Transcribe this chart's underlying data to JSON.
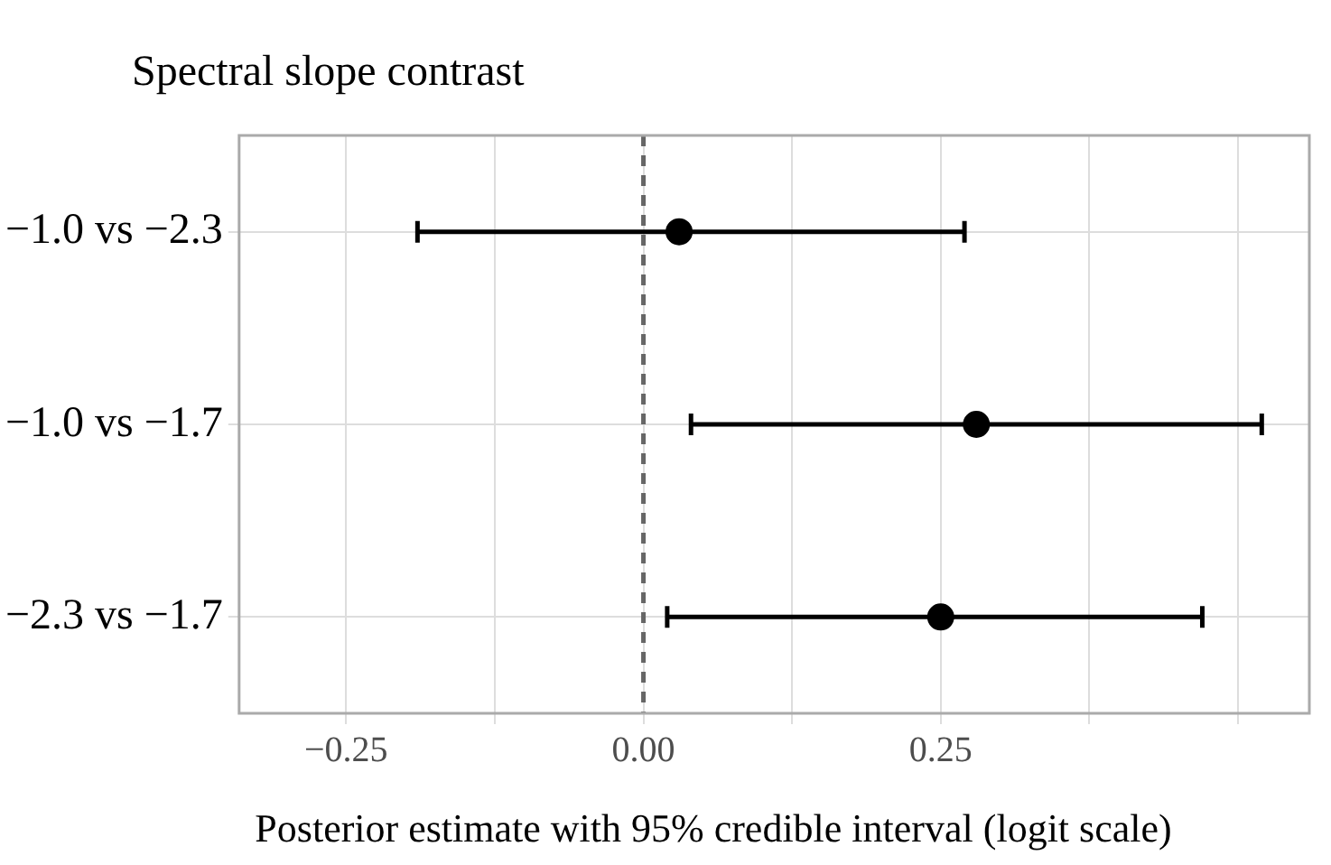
{
  "chart_data": {
    "type": "scatter",
    "orientation": "horizontal",
    "title": "Spectral slope contrast",
    "xlabel": "Posterior estimate with 95% credible interval (logit scale)",
    "categories": [
      "−1.0 vs −2.3",
      "−1.0 vs −1.7",
      "−2.3 vs −1.7"
    ],
    "values": [
      0.03,
      0.28,
      0.25
    ],
    "errors": [
      [
        -0.19,
        0.27
      ],
      [
        0.04,
        0.52
      ],
      [
        0.02,
        0.47
      ]
    ],
    "color": "#000000",
    "marker": "circle",
    "xlim": [
      -0.34,
      0.56
    ],
    "xticks": [
      {
        "value": -0.25,
        "label": "−0.25"
      },
      {
        "value": -0.125,
        "label": null
      },
      {
        "value": 0,
        "label": "0.00"
      },
      {
        "value": 0.125,
        "label": null
      },
      {
        "value": 0.25,
        "label": "0.25"
      },
      {
        "value": 0.375,
        "label": null
      },
      {
        "value": 0.5,
        "label": null
      }
    ],
    "ref_lines": [
      {
        "axis": "x",
        "value": 0,
        "color": "#666666",
        "line_style": "dashed"
      }
    ],
    "grid": true,
    "legend": false
  }
}
